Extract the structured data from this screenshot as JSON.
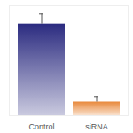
{
  "chart_data": {
    "type": "bar",
    "categories": [
      "Control",
      "siRNA"
    ],
    "values": [
      1.0,
      0.15
    ],
    "errors": [
      0.11,
      0.06
    ],
    "colors": [
      "#2b2b80",
      "#e8883a"
    ],
    "ylim": [
      0,
      1.2
    ],
    "tick_labels": "x"
  }
}
